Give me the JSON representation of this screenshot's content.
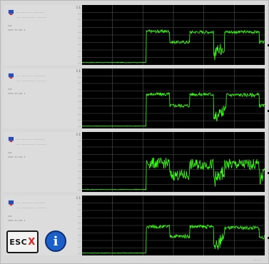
{
  "colors": {
    "trace": "#39ff14",
    "grid": "#555555",
    "plot_bg": "#000000",
    "panel_bg": "#dcdcdc"
  },
  "buttons": {
    "esc_label": "ESC",
    "esc_x": "X",
    "info_glyph": "i"
  },
  "panels": [
    {
      "id": 1,
      "info": [
        "···· ·········· ··········",
        "···· ············ ·········",
        "···",
        "···· ·· ··· ·"
      ],
      "y_ticks": [
        "1·1",
        "···",
        "···",
        "···",
        "···",
        "···",
        "···",
        "···",
        "···",
        "···"
      ],
      "chart_data": {
        "type": "line",
        "x_segments": 6,
        "levels": [
          {
            "x0": 0.0,
            "x1": 0.35,
            "y": 0.04
          },
          {
            "x0": 0.35,
            "x1": 0.48,
            "y": 0.56
          },
          {
            "x0": 0.48,
            "x1": 0.59,
            "y": 0.38
          },
          {
            "x0": 0.59,
            "x1": 0.72,
            "y": 0.55
          },
          {
            "x0": 0.72,
            "x1": 0.78,
            "y": 0.22
          },
          {
            "x0": 0.78,
            "x1": 0.97,
            "y": 0.55
          },
          {
            "x0": 0.97,
            "x1": 1.0,
            "y": 0.38
          }
        ],
        "noise": 0.05
      }
    },
    {
      "id": 2,
      "info": [
        "···· ·········· ··········",
        "···· ············ ·········",
        "···",
        "···· ·· ··· ·"
      ],
      "y_ticks": [
        "1·1",
        "···",
        "···",
        "···",
        "···",
        "···",
        "···",
        "···",
        "···",
        "···"
      ],
      "chart_data": {
        "type": "line",
        "x_segments": 6,
        "levels": [
          {
            "x0": 0.0,
            "x1": 0.35,
            "y": 0.04
          },
          {
            "x0": 0.35,
            "x1": 0.48,
            "y": 0.57
          },
          {
            "x0": 0.48,
            "x1": 0.59,
            "y": 0.38
          },
          {
            "x0": 0.59,
            "x1": 0.72,
            "y": 0.57
          },
          {
            "x0": 0.72,
            "x1": 0.79,
            "y": 0.22
          },
          {
            "x0": 0.79,
            "x1": 0.97,
            "y": 0.56
          },
          {
            "x0": 0.97,
            "x1": 1.0,
            "y": 0.38
          }
        ],
        "noise": 0.06
      }
    },
    {
      "id": 3,
      "info": [
        "···· ·········· ··········",
        "···· ············ ·········",
        "···",
        "···· ·· ··· ·"
      ],
      "y_ticks": [
        "1·1",
        "···",
        "···",
        "···",
        "···",
        "···",
        "···",
        "···",
        "···",
        "···"
      ],
      "chart_data": {
        "type": "line",
        "x_segments": 6,
        "levels": [
          {
            "x0": 0.0,
            "x1": 0.35,
            "y": 0.04
          },
          {
            "x0": 0.35,
            "x1": 0.48,
            "y": 0.48
          },
          {
            "x0": 0.48,
            "x1": 0.59,
            "y": 0.28
          },
          {
            "x0": 0.59,
            "x1": 0.72,
            "y": 0.46
          },
          {
            "x0": 0.72,
            "x1": 0.78,
            "y": 0.22
          },
          {
            "x0": 0.78,
            "x1": 0.97,
            "y": 0.46
          },
          {
            "x0": 0.97,
            "x1": 1.0,
            "y": 0.26
          }
        ],
        "noise": 0.18
      }
    },
    {
      "id": 4,
      "info": [
        "···· ·········· ··········",
        "···· ············ ·········",
        "···",
        "···· ·· ··· ·"
      ],
      "y_ticks": [
        "1·1",
        "···",
        "···",
        "···",
        "···",
        "···",
        "···",
        "···",
        "···",
        "···"
      ],
      "chart_data": {
        "type": "line",
        "x_segments": 6,
        "levels": [
          {
            "x0": 0.0,
            "x1": 0.35,
            "y": 0.04
          },
          {
            "x0": 0.35,
            "x1": 0.48,
            "y": 0.48
          },
          {
            "x0": 0.48,
            "x1": 0.59,
            "y": 0.32
          },
          {
            "x0": 0.59,
            "x1": 0.72,
            "y": 0.48
          },
          {
            "x0": 0.72,
            "x1": 0.78,
            "y": 0.2
          },
          {
            "x0": 0.78,
            "x1": 0.97,
            "y": 0.46
          },
          {
            "x0": 0.97,
            "x1": 1.0,
            "y": 0.3
          }
        ],
        "noise": 0.06
      }
    }
  ],
  "corner_label": "···· ·· ·"
}
